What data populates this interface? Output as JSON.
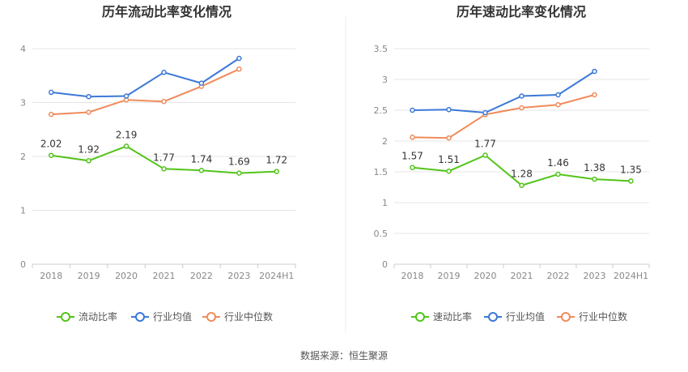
{
  "source": "数据来源：恒生聚源",
  "colors": {
    "main": "#52c41a",
    "avg": "#3c78d8",
    "median": "#f08b5b",
    "grid": "#e5e5e5",
    "axis": "#cccccc"
  },
  "chart_data": [
    {
      "type": "line",
      "title": "历年流动比率变化情况",
      "categories": [
        "2018",
        "2019",
        "2020",
        "2021",
        "2022",
        "2023",
        "2024H1"
      ],
      "yticks": [
        "0",
        "1",
        "2",
        "3",
        "4"
      ],
      "ylim": [
        0,
        4
      ],
      "grid": true,
      "legend": "bottom",
      "series": [
        {
          "name": "流动比率",
          "key": "main",
          "values": [
            2.02,
            1.92,
            2.19,
            1.77,
            1.74,
            1.69,
            1.72
          ],
          "labels": [
            "2.02",
            "1.92",
            "2.19",
            "1.77",
            "1.74",
            "1.69",
            "1.72"
          ]
        },
        {
          "name": "行业均值",
          "key": "avg",
          "values": [
            3.19,
            3.11,
            3.12,
            3.56,
            3.36,
            3.82,
            null
          ]
        },
        {
          "name": "行业中位数",
          "key": "median",
          "values": [
            2.78,
            2.82,
            3.05,
            3.02,
            3.3,
            3.62,
            null
          ]
        }
      ]
    },
    {
      "type": "line",
      "title": "历年速动比率变化情况",
      "categories": [
        "2018",
        "2019",
        "2020",
        "2021",
        "2022",
        "2023",
        "2024H1"
      ],
      "yticks": [
        "0",
        "0.5",
        "1",
        "1.5",
        "2",
        "2.5",
        "3",
        "3.5"
      ],
      "ylim": [
        0,
        3.5
      ],
      "grid": true,
      "legend": "bottom",
      "series": [
        {
          "name": "速动比率",
          "key": "main",
          "values": [
            1.57,
            1.51,
            1.77,
            1.28,
            1.46,
            1.38,
            1.35
          ],
          "labels": [
            "1.57",
            "1.51",
            "1.77",
            "1.28",
            "1.46",
            "1.38",
            "1.35"
          ]
        },
        {
          "name": "行业均值",
          "key": "avg",
          "values": [
            2.5,
            2.51,
            2.46,
            2.73,
            2.75,
            3.13,
            null
          ]
        },
        {
          "name": "行业中位数",
          "key": "median",
          "values": [
            2.06,
            2.05,
            2.43,
            2.54,
            2.59,
            2.75,
            null
          ]
        }
      ]
    }
  ]
}
